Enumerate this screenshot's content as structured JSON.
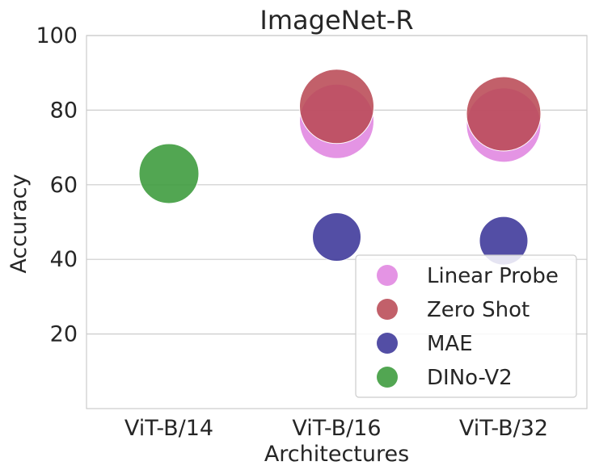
{
  "chart_data": {
    "type": "scatter",
    "title": "ImageNet-R",
    "xlabel": "Architectures",
    "ylabel": "Accuracy",
    "categories": [
      "ViT-B/14",
      "ViT-B/16",
      "ViT-B/32"
    ],
    "ylim": [
      0,
      100
    ],
    "yticks": [
      20,
      40,
      60,
      80,
      100
    ],
    "grid": true,
    "legend_position": "bottom-right",
    "series": [
      {
        "name": "Linear Probe",
        "color": "#e085e0",
        "points": [
          {
            "x": "ViT-B/16",
            "y": 77
          },
          {
            "x": "ViT-B/32",
            "y": 76
          }
        ]
      },
      {
        "name": "Zero Shot",
        "color": "#b94a55",
        "points": [
          {
            "x": "ViT-B/16",
            "y": 81
          },
          {
            "x": "ViT-B/32",
            "y": 79
          }
        ]
      },
      {
        "name": "MAE",
        "color": "#3b3599",
        "points": [
          {
            "x": "ViT-B/16",
            "y": 46
          },
          {
            "x": "ViT-B/32",
            "y": 45
          }
        ]
      },
      {
        "name": "DINo-V2",
        "color": "#3a9a3a",
        "points": [
          {
            "x": "ViT-B/14",
            "y": 63
          }
        ]
      }
    ]
  }
}
